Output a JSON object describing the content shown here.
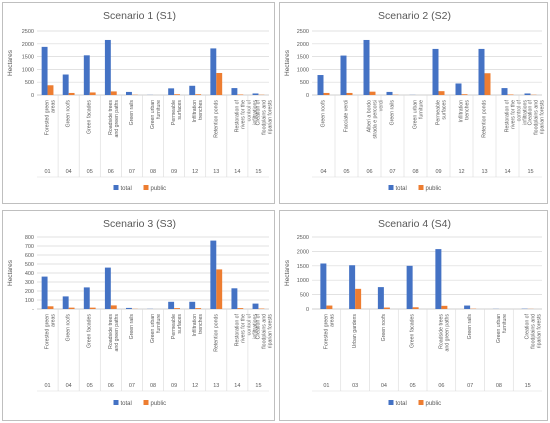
{
  "colors": {
    "total": "#4472c4",
    "public": "#ed7d31",
    "grid": "#d9d9d9",
    "axis": "#bfbfbf",
    "text": "#595959"
  },
  "chart_data": [
    {
      "type": "bar",
      "title": "Scenario 1 (S1)",
      "ylabel": "Hectares",
      "ylim": [
        0,
        2500
      ],
      "yticks": [
        "0",
        "500",
        "1000",
        "1500",
        "2000",
        "2500"
      ],
      "grid": true,
      "legend_position": "bottom",
      "categories": [
        "Forested green areas",
        "Green roofs",
        "Green facades",
        "Roadside trees and green paths",
        "Green rails",
        "Green urban furniture",
        "Permeable surfaces",
        "Infiltration trenches",
        "Retention ponds",
        "Restoration of rivers for the control of infiltrations",
        "Creation of floodplains and riparian forests"
      ],
      "codes": [
        "01",
        "04",
        "05",
        "06",
        "07",
        "08",
        "09",
        "12",
        "13",
        "14",
        "15"
      ],
      "series": [
        {
          "name": "total",
          "values": [
            1880,
            800,
            1550,
            2150,
            120,
            5,
            260,
            360,
            1820,
            270,
            60
          ]
        },
        {
          "name": "public",
          "values": [
            380,
            80,
            100,
            140,
            10,
            0,
            30,
            30,
            860,
            20,
            10
          ]
        }
      ]
    },
    {
      "type": "bar",
      "title": "Scenario 2 (S2)",
      "ylabel": "Hectares",
      "ylim": [
        0,
        2500
      ],
      "yticks": [
        "0",
        "500",
        "1000",
        "1500",
        "2000",
        "2500"
      ],
      "grid": true,
      "legend_position": "bottom",
      "categories": [
        "Green roofs",
        "Facciate verdi",
        "Alberi a bordo strada e percorsi verdi",
        "Green rails",
        "Green urban furniture",
        "Permeable surfaces",
        "Infiltration trenches",
        "Retention ponds",
        "Restoration of rivers for the control of infiltrations",
        "Creation of floodplains and riparian forests"
      ],
      "codes": [
        "04",
        "05",
        "06",
        "07",
        "08",
        "09",
        "12",
        "13",
        "14",
        "15"
      ],
      "series": [
        {
          "name": "total",
          "values": [
            780,
            1540,
            2150,
            120,
            5,
            1800,
            450,
            1800,
            270,
            60
          ]
        },
        {
          "name": "public",
          "values": [
            80,
            80,
            130,
            10,
            0,
            150,
            30,
            850,
            20,
            10
          ]
        }
      ]
    },
    {
      "type": "bar",
      "title": "Scenario 3 (S3)",
      "ylabel": "Hectares",
      "ylim": [
        0,
        800
      ],
      "yticks": [
        "-",
        "100",
        "200",
        "300",
        "400",
        "500",
        "600",
        "700",
        "800"
      ],
      "grid": true,
      "legend_position": "bottom",
      "categories": [
        "Forested green areas",
        "Green roofs",
        "Green facades",
        "Roadside trees and green paths",
        "Green rails",
        "Green urban furniture",
        "Permeable surfaces",
        "Infiltration trenches",
        "Retention ponds",
        "Restoration of rivers for the control of infiltrations",
        "Creation of floodplains and riparian forests"
      ],
      "codes": [
        "01",
        "04",
        "05",
        "06",
        "07",
        "08",
        "09",
        "12",
        "13",
        "14",
        "15"
      ],
      "series": [
        {
          "name": "total",
          "values": [
            360,
            140,
            240,
            460,
            12,
            2,
            80,
            80,
            760,
            230,
            60
          ]
        },
        {
          "name": "public",
          "values": [
            30,
            15,
            15,
            40,
            2,
            0,
            10,
            10,
            440,
            10,
            5
          ]
        }
      ]
    },
    {
      "type": "bar",
      "title": "Scenario 4 (S4)",
      "ylabel": "Hectares",
      "ylim": [
        0,
        2500
      ],
      "yticks": [
        "0",
        "500",
        "1000",
        "1500",
        "2000",
        "2500"
      ],
      "grid": true,
      "legend_position": "bottom",
      "categories": [
        "Forested green areas",
        "Urban gardens",
        "Green roofs",
        "Green facades",
        "Roadside trees and green paths",
        "Green rails",
        "Green urban furniture",
        "Creation of floodplains and riparian forests"
      ],
      "codes": [
        "01",
        "03",
        "04",
        "05",
        "06",
        "07",
        "08",
        "15"
      ],
      "series": [
        {
          "name": "total",
          "values": [
            1580,
            1520,
            760,
            1500,
            2080,
            120,
            5,
            10
          ]
        },
        {
          "name": "public",
          "values": [
            120,
            700,
            50,
            60,
            110,
            10,
            0,
            5
          ]
        }
      ]
    }
  ]
}
